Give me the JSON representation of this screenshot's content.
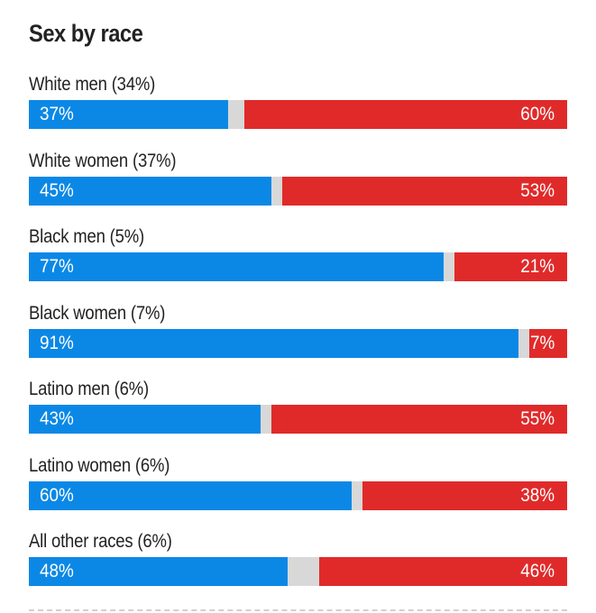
{
  "chart_data": {
    "type": "bar",
    "orientation": "horizontal",
    "stacked": true,
    "title": "Sex by race",
    "categories": [
      "White men (34%)",
      "White women (37%)",
      "Black men (5%)",
      "Black women (7%)",
      "Latino men (6%)",
      "Latino women (6%)",
      "All other races (6%)"
    ],
    "series": [
      {
        "values": [
          37,
          45,
          77,
          91,
          43,
          60,
          48
        ],
        "color": "#0b88e6"
      },
      {
        "values": [
          60,
          53,
          21,
          7,
          55,
          38,
          46
        ],
        "color": "#e02a2a"
      }
    ],
    "remainder_color": "#d8d8d8",
    "xlim": [
      0,
      100
    ],
    "value_suffix": "%",
    "legend": "none",
    "grid": false
  }
}
